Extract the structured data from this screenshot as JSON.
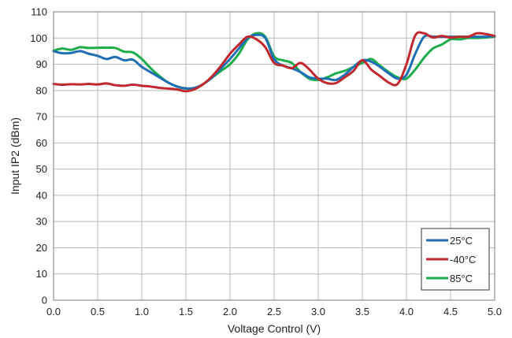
{
  "chart_data": {
    "type": "line",
    "title": "",
    "xlabel": "Voltage Control (V)",
    "ylabel": "Input IP2 (dBm)",
    "xlim": [
      0,
      5
    ],
    "ylim": [
      0,
      110
    ],
    "xticks": [
      "0.0",
      "0.5",
      "1.0",
      "1.5",
      "2.0",
      "2.5",
      "3.0",
      "3.5",
      "4.0",
      "4.5",
      "5.0"
    ],
    "yticks": [
      "0",
      "10",
      "20",
      "30",
      "40",
      "50",
      "60",
      "70",
      "80",
      "90",
      "100",
      "110"
    ],
    "grid": true,
    "legend_position": "bottom-right",
    "series": [
      {
        "name": "25°C",
        "color": "#1f6fb5",
        "x": [
          0,
          0.1,
          0.2,
          0.3,
          0.4,
          0.5,
          0.6,
          0.7,
          0.8,
          0.9,
          1.0,
          1.1,
          1.2,
          1.3,
          1.4,
          1.5,
          1.6,
          1.7,
          1.8,
          1.9,
          2.0,
          2.1,
          2.2,
          2.3,
          2.4,
          2.5,
          2.6,
          2.7,
          2.8,
          2.9,
          3.0,
          3.1,
          3.2,
          3.3,
          3.4,
          3.5,
          3.6,
          3.7,
          3.8,
          3.9,
          4.0,
          4.1,
          4.2,
          4.3,
          4.4,
          4.5,
          4.6,
          4.7,
          4.8,
          4.9,
          5.0
        ],
        "y": [
          95.0,
          94.2,
          94.3,
          95.0,
          94.0,
          93.2,
          92.0,
          92.8,
          91.5,
          91.7,
          89.0,
          87.0,
          85.0,
          83.0,
          81.5,
          80.8,
          81.0,
          82.5,
          85.0,
          88.5,
          92.0,
          96.0,
          100.0,
          101.2,
          100.0,
          92.0,
          89.5,
          88.5,
          87.0,
          85.0,
          84.5,
          84.5,
          84.0,
          86.0,
          89.0,
          91.5,
          91.0,
          89.0,
          86.5,
          84.5,
          86.0,
          94.0,
          100.5,
          100.5,
          100.5,
          100.5,
          100.5,
          100.5,
          100.5,
          100.5,
          100.8
        ]
      },
      {
        "name": "-40°C",
        "color": "#c0282e",
        "x": [
          0,
          0.1,
          0.2,
          0.3,
          0.4,
          0.5,
          0.6,
          0.7,
          0.8,
          0.9,
          1.0,
          1.1,
          1.2,
          1.3,
          1.4,
          1.5,
          1.6,
          1.7,
          1.8,
          1.9,
          2.0,
          2.1,
          2.2,
          2.3,
          2.4,
          2.5,
          2.6,
          2.7,
          2.8,
          2.9,
          3.0,
          3.1,
          3.2,
          3.3,
          3.4,
          3.5,
          3.6,
          3.7,
          3.8,
          3.9,
          4.0,
          4.1,
          4.2,
          4.3,
          4.4,
          4.5,
          4.6,
          4.7,
          4.8,
          4.9,
          5.0
        ],
        "y": [
          82.5,
          82.2,
          82.4,
          82.3,
          82.5,
          82.3,
          82.7,
          82.0,
          81.8,
          82.2,
          81.8,
          81.5,
          81.0,
          80.7,
          80.4,
          79.7,
          80.5,
          82.5,
          85.5,
          89.5,
          94.0,
          97.5,
          100.5,
          99.5,
          96.5,
          90.5,
          89.5,
          88.5,
          90.5,
          88.0,
          84.5,
          82.8,
          82.8,
          85.0,
          87.5,
          91.5,
          88.0,
          85.5,
          83.0,
          82.5,
          90.0,
          101.0,
          101.8,
          100.2,
          100.8,
          100.2,
          100.5,
          100.5,
          101.8,
          101.5,
          100.8
        ]
      },
      {
        "name": "85°C",
        "color": "#1cad4a",
        "x": [
          0,
          0.1,
          0.2,
          0.3,
          0.4,
          0.5,
          0.6,
          0.7,
          0.8,
          0.9,
          1.0,
          1.1,
          1.2,
          1.3,
          1.4,
          1.5,
          1.6,
          1.7,
          1.8,
          1.9,
          2.0,
          2.1,
          2.2,
          2.3,
          2.4,
          2.5,
          2.6,
          2.7,
          2.8,
          2.9,
          3.0,
          3.1,
          3.2,
          3.3,
          3.4,
          3.5,
          3.6,
          3.7,
          3.8,
          3.9,
          4.0,
          4.1,
          4.2,
          4.3,
          4.4,
          4.5,
          4.6,
          4.7,
          4.8,
          4.9,
          5.0
        ],
        "y": [
          95.2,
          96.0,
          95.5,
          96.5,
          96.2,
          96.3,
          96.3,
          96.2,
          94.8,
          94.5,
          92.0,
          88.5,
          85.5,
          83.0,
          81.5,
          80.7,
          80.8,
          82.5,
          85.0,
          87.5,
          90.0,
          94.0,
          99.5,
          101.8,
          100.5,
          93.0,
          91.5,
          90.5,
          87.0,
          84.5,
          84.0,
          85.0,
          86.5,
          87.5,
          89.0,
          90.5,
          92.0,
          89.5,
          87.0,
          85.0,
          84.5,
          88.0,
          92.5,
          96.0,
          97.5,
          99.5,
          99.5,
          100.0,
          100.0,
          100.2,
          100.5
        ]
      }
    ]
  }
}
